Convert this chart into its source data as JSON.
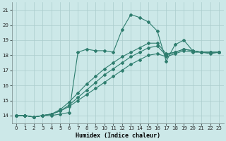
{
  "xlabel": "Humidex (Indice chaleur)",
  "background_color": "#cce8e8",
  "grid_color": "#aacccc",
  "line_color": "#2e7d6e",
  "xlim": [
    -0.5,
    23.5
  ],
  "ylim": [
    13.5,
    21.5
  ],
  "xticks": [
    0,
    1,
    2,
    3,
    4,
    5,
    6,
    7,
    8,
    9,
    10,
    11,
    12,
    13,
    14,
    15,
    16,
    17,
    18,
    19,
    20,
    21,
    22,
    23
  ],
  "yticks": [
    14,
    15,
    16,
    17,
    18,
    19,
    20,
    21
  ],
  "lines": [
    {
      "x": [
        0,
        1,
        2,
        3,
        4,
        5,
        6,
        7,
        8,
        9,
        10,
        11,
        12,
        13,
        14,
        15,
        16,
        17,
        18,
        19,
        20,
        21,
        22,
        23
      ],
      "y": [
        14.0,
        14.0,
        13.9,
        14.0,
        14.0,
        14.1,
        14.2,
        18.2,
        18.4,
        18.3,
        18.3,
        18.2,
        19.7,
        20.7,
        20.5,
        20.2,
        19.6,
        17.6,
        18.7,
        19.0,
        18.3,
        18.2,
        18.2,
        18.2
      ]
    },
    {
      "x": [
        0,
        1,
        2,
        3,
        4,
        5,
        6,
        7,
        8,
        9,
        10,
        11,
        12,
        13,
        14,
        15,
        16,
        17,
        18,
        19,
        20,
        21,
        22,
        23
      ],
      "y": [
        14.0,
        14.0,
        13.9,
        14.0,
        14.1,
        14.3,
        14.6,
        15.0,
        15.4,
        15.8,
        16.2,
        16.6,
        17.0,
        17.4,
        17.7,
        18.0,
        18.1,
        17.9,
        18.1,
        18.3,
        18.2,
        18.2,
        18.1,
        18.2
      ]
    },
    {
      "x": [
        0,
        1,
        2,
        3,
        4,
        5,
        6,
        7,
        8,
        9,
        10,
        11,
        12,
        13,
        14,
        15,
        16,
        17,
        18,
        19,
        20,
        21,
        22,
        23
      ],
      "y": [
        14.0,
        14.0,
        13.9,
        14.0,
        14.1,
        14.3,
        14.7,
        15.2,
        15.7,
        16.2,
        16.7,
        17.1,
        17.5,
        17.9,
        18.2,
        18.5,
        18.6,
        18.0,
        18.2,
        18.4,
        18.3,
        18.2,
        18.2,
        18.2
      ]
    },
    {
      "x": [
        0,
        1,
        2,
        3,
        4,
        5,
        6,
        7,
        8,
        9,
        10,
        11,
        12,
        13,
        14,
        15,
        16,
        17,
        18,
        19,
        20,
        21,
        22,
        23
      ],
      "y": [
        14.0,
        14.0,
        13.9,
        14.0,
        14.1,
        14.4,
        14.9,
        15.5,
        16.1,
        16.6,
        17.1,
        17.5,
        17.9,
        18.2,
        18.5,
        18.8,
        18.8,
        18.1,
        18.2,
        18.4,
        18.3,
        18.2,
        18.2,
        18.2
      ]
    }
  ]
}
